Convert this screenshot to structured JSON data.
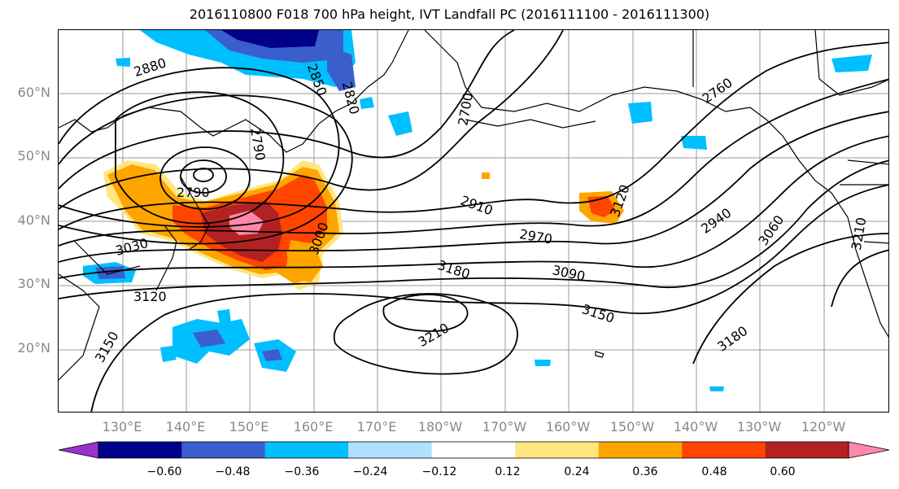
{
  "title": "2016110800 F018 700 hPa height, IVT Landfall PC (2016111100 - 2016111300)",
  "lat_labels": [
    "60°N",
    "50°N",
    "40°N",
    "30°N",
    "20°N"
  ],
  "lon_labels": [
    "130°E",
    "140°E",
    "150°E",
    "160°E",
    "170°E",
    "180°W",
    "170°W",
    "160°W",
    "150°W",
    "140°W",
    "130°W",
    "120°W"
  ],
  "contour_labels": [
    "2880",
    "2850",
    "2790",
    "2820",
    "2790",
    "2760",
    "2700",
    "3030",
    "3000",
    "2910",
    "2970",
    "3090",
    "3180",
    "3120",
    "3210",
    "3150",
    "3150",
    "3180",
    "2940",
    "3060",
    "3210",
    "3120"
  ],
  "colorbar": {
    "tick_labels": [
      "−0.60",
      "−0.48",
      "−0.36",
      "−0.24",
      "−0.12",
      "0.12",
      "0.24",
      "0.36",
      "0.48",
      "0.60"
    ],
    "colors": [
      "#9932cc",
      "#00008b",
      "#3a5fcd",
      "#00bfff",
      "#b0e0ff",
      "#ffffff",
      "#ffe680",
      "#ffa500",
      "#ff4500",
      "#b22222",
      "#ff88aa"
    ]
  },
  "colors": {
    "neg_strong": "#00008b",
    "neg_mid": "#3a5fcd",
    "neg_light": "#00bfff",
    "neg_faint": "#b0e0ff",
    "pos_faint": "#ffe680",
    "pos_light": "#ffa500",
    "pos_mid": "#ff4500",
    "pos_strong": "#b22222",
    "pos_peak": "#ff88aa"
  }
}
